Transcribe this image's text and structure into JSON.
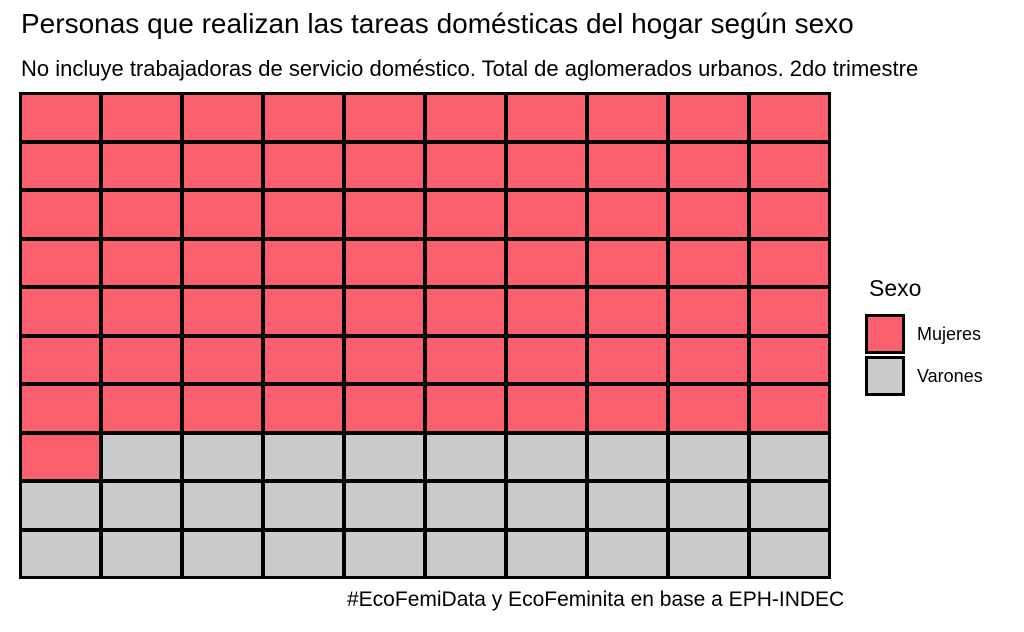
{
  "page": {
    "background": "#ffffff",
    "text_color": "#000000"
  },
  "chart_data": {
    "type": "waffle",
    "title": "Personas que realizan las tareas domésticas del hogar según sexo",
    "subtitle": "No incluye trabajadoras de servicio doméstico. Total de aglomerados urbanos. 2do trimestre",
    "caption": "#EcoFemiData y EcoFeminita en base a EPH-INDEC",
    "grid": {
      "rows": 10,
      "cols": 10,
      "total_cells": 100,
      "fill_order": "row-major-from-top-left",
      "cell_border_color": "#000000"
    },
    "units": "percent (1 cell = 1%)",
    "series": [
      {
        "name": "Mujeres",
        "value": 71,
        "color": "#FB5E6C"
      },
      {
        "name": "Varones",
        "value": 29,
        "color": "#CBCBCB"
      }
    ],
    "legend": {
      "title": "Sexo",
      "position": "right"
    }
  }
}
